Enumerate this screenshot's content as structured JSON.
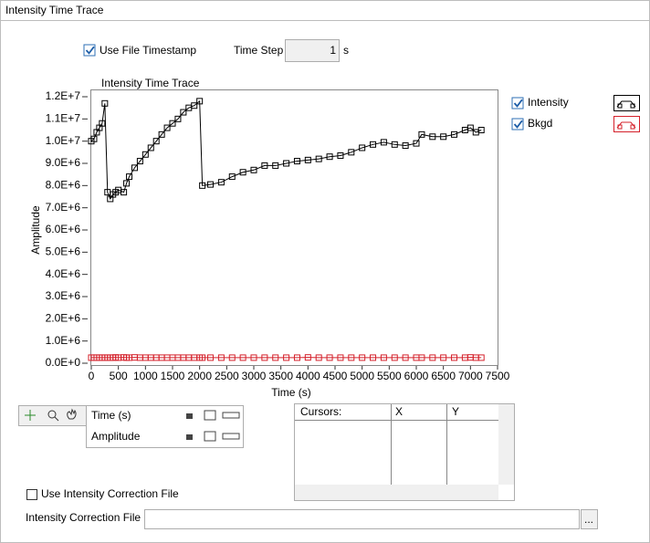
{
  "panel_title": "Intensity Time Trace",
  "use_file_timestamp": {
    "label": "Use File Timestamp",
    "checked": true
  },
  "time_step": {
    "label": "Time Step",
    "value": 1,
    "unit": "s"
  },
  "chart_data": {
    "type": "line",
    "title": "Intensity Time Trace",
    "x_label": "Time (s)",
    "y_label": "Amplitude",
    "marker": "square",
    "x": [
      0,
      50,
      100,
      150,
      200,
      250,
      300,
      350,
      400,
      450,
      500,
      600,
      650,
      700,
      800,
      900,
      1000,
      1100,
      1200,
      1300,
      1400,
      1500,
      1600,
      1700,
      1800,
      1900,
      2000,
      2050,
      2200,
      2400,
      2600,
      2800,
      3000,
      3200,
      3400,
      3600,
      3800,
      4000,
      4200,
      4400,
      4600,
      4800,
      5000,
      5200,
      5400,
      5600,
      5800,
      6000,
      6100,
      6300,
      6500,
      6700,
      6900,
      7000,
      7100,
      7200
    ],
    "series": [
      {
        "name": "Intensity",
        "color": "#000000",
        "visible": true,
        "values": [
          10000000,
          10100000,
          10400000,
          10600000,
          10800000,
          11700000,
          7700000,
          7400000,
          7600000,
          7700000,
          7800000,
          7700000,
          8100000,
          8400000,
          8800000,
          9100000,
          9400000,
          9700000,
          10000000,
          10300000,
          10600000,
          10800000,
          11000000,
          11300000,
          11500000,
          11600000,
          11800000,
          8000000,
          8050000,
          8150000,
          8400000,
          8600000,
          8700000,
          8900000,
          8900000,
          9000000,
          9100000,
          9150000,
          9200000,
          9300000,
          9350000,
          9500000,
          9700000,
          9850000,
          9950000,
          9850000,
          9800000,
          9900000,
          10300000,
          10200000,
          10200000,
          10300000,
          10500000,
          10600000,
          10400000,
          10500000
        ]
      },
      {
        "name": "Bkgd",
        "color": "#d4202a",
        "visible": true,
        "values": [
          250000,
          250000,
          250000,
          250000,
          250000,
          250000,
          250000,
          250000,
          250000,
          260000,
          250000,
          260000,
          250000,
          250000,
          260000,
          250000,
          250000,
          250000,
          250000,
          250000,
          250000,
          250000,
          250000,
          250000,
          250000,
          250000,
          250000,
          250000,
          250000,
          250000,
          250000,
          250000,
          250000,
          250000,
          250000,
          250000,
          250000,
          260000,
          250000,
          250000,
          250000,
          250000,
          250000,
          250000,
          250000,
          250000,
          250000,
          250000,
          250000,
          250000,
          250000,
          250000,
          250000,
          260000,
          250000,
          250000
        ]
      }
    ],
    "xlim": [
      0,
      7500
    ],
    "xticks": [
      0,
      500,
      1000,
      1500,
      2000,
      2500,
      3000,
      3500,
      4000,
      4500,
      5000,
      5500,
      6000,
      6500,
      7000,
      7500
    ],
    "ylim": [
      0,
      12000000
    ],
    "yticks": [
      {
        "value": 0,
        "label": "0.0E+0"
      },
      {
        "value": 1000000,
        "label": "1.0E+6"
      },
      {
        "value": 2000000,
        "label": "2.0E+6"
      },
      {
        "value": 3000000,
        "label": "3.0E+6"
      },
      {
        "value": 4000000,
        "label": "4.0E+6"
      },
      {
        "value": 5000000,
        "label": "5.0E+6"
      },
      {
        "value": 6000000,
        "label": "6.0E+6"
      },
      {
        "value": 7000000,
        "label": "7.0E+6"
      },
      {
        "value": 8000000,
        "label": "8.0E+6"
      },
      {
        "value": 9000000,
        "label": "9.0E+6"
      },
      {
        "value": 10000000,
        "label": "1.0E+7"
      },
      {
        "value": 11000000,
        "label": "1.1E+7"
      },
      {
        "value": 12000000,
        "label": "1.2E+7"
      }
    ]
  },
  "scale_legend": {
    "rows": [
      "Time (s)",
      "Amplitude"
    ]
  },
  "cursors": {
    "columns": [
      "Cursors:",
      "X",
      "Y"
    ]
  },
  "use_intensity_correction_file": {
    "label": "Use Intensity Correction File",
    "checked": false
  },
  "intensity_correction_file": {
    "label": "Intensity Correction File",
    "browse": "..."
  }
}
